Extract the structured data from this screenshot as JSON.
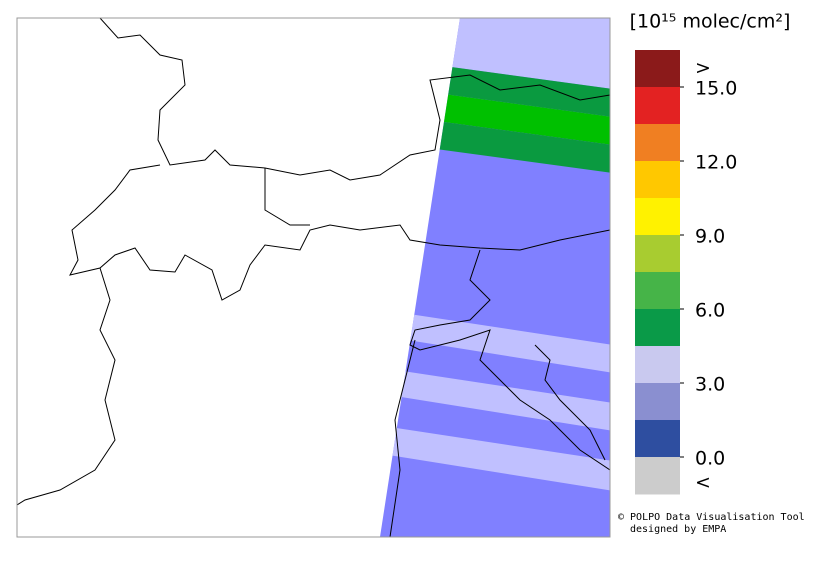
{
  "colorbar": {
    "title": "[10¹⁵ molec/cm²]",
    "over_label": ">",
    "under_label": "<",
    "segment_colors": [
      "#8b1a1a",
      "#e32222",
      "#f07f22",
      "#ffc800",
      "#fff200",
      "#a8cc30",
      "#46b448",
      "#0a9a48",
      "#c9c9ef",
      "#8a8fd0",
      "#2e4ea0",
      "#cccccc"
    ],
    "ticks": [
      {
        "value": 15,
        "label": "15.0"
      },
      {
        "value": 12,
        "label": "12.0"
      },
      {
        "value": 9,
        "label": "9.0"
      },
      {
        "value": 6,
        "label": "6.0"
      },
      {
        "value": 3,
        "label": "3.0"
      },
      {
        "value": 0,
        "label": "0.0"
      }
    ]
  },
  "credits": [
    "© POLPO Data Visualisation Tool",
    "designed by EMPA"
  ]
}
